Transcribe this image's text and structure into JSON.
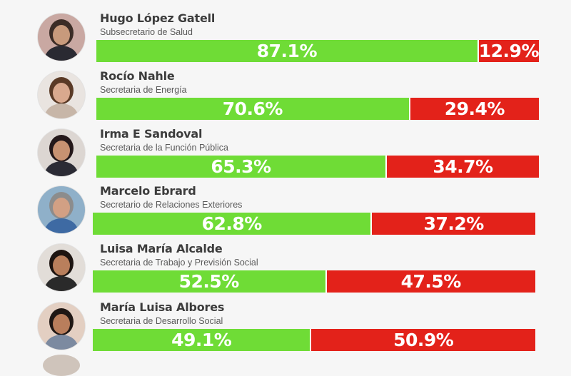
{
  "chart_data": {
    "type": "bar",
    "stacked": true,
    "orientation": "horizontal",
    "categories": [
      "Hugo López Gatell",
      "Rocío Nahle",
      "Irma E Sandoval",
      "Marcelo Ebrard",
      "Luisa María Alcalde",
      "María Luisa Albores"
    ],
    "series": [
      {
        "values": [
          87.1,
          70.6,
          65.3,
          62.8,
          52.5,
          49.1
        ]
      },
      {
        "values": [
          12.9,
          29.4,
          34.7,
          37.2,
          47.5,
          50.9
        ]
      }
    ],
    "xlim": [
      0,
      100
    ],
    "grid": false,
    "legend": "none"
  },
  "people": [
    {
      "name": "Hugo López Gatell",
      "role": "Subsecretario de Salud",
      "positive": 87.1,
      "negative": 12.9,
      "positive_label": "87.1%",
      "negative_label": "12.9%",
      "photo_icon": "person-photo-icon"
    },
    {
      "name": "Rocío Nahle",
      "role": "Secretaria de Energía",
      "positive": 70.6,
      "negative": 29.4,
      "positive_label": "70.6%",
      "negative_label": "29.4%",
      "photo_icon": "person-photo-icon"
    },
    {
      "name": "Irma E Sandoval",
      "role": "Secretaria de la Función Pública",
      "positive": 65.3,
      "negative": 34.7,
      "positive_label": "65.3%",
      "negative_label": "34.7%",
      "photo_icon": "person-photo-icon"
    },
    {
      "name": "Marcelo Ebrard",
      "role": "Secretario de Relaciones Exteriores",
      "positive": 62.8,
      "negative": 37.2,
      "positive_label": "62.8%",
      "negative_label": "37.2%",
      "photo_icon": "person-photo-icon"
    },
    {
      "name": "Luisa María Alcalde",
      "role": "Secretaria de Trabajo y Previsión Social",
      "positive": 52.5,
      "negative": 47.5,
      "positive_label": "52.5%",
      "negative_label": "47.5%",
      "photo_icon": "person-photo-icon"
    },
    {
      "name": "María Luisa Albores",
      "role": "Secretaria de Desarrollo Social",
      "positive": 49.1,
      "negative": 50.9,
      "positive_label": "49.1%",
      "negative_label": "50.9%",
      "photo_icon": "person-photo-icon"
    }
  ],
  "colors": {
    "positive": "#6fdc36",
    "negative": "#e3221a",
    "background": "#f6f6f6",
    "name_text": "#3c3c3c",
    "role_text": "#5a5a5a"
  }
}
